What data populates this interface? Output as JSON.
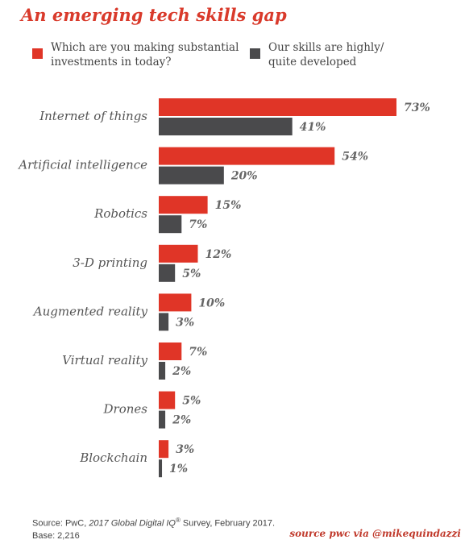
{
  "title": "An emerging tech skills gap",
  "legend": {
    "series1": "Which are you making substantial investments in today?",
    "series1_line1": "Which are you making substantial",
    "series1_line2": "investments in today?",
    "series2": "Our skills are highly/ quite developed",
    "series2_line1": "Our skills are highly/",
    "series2_line2": "quite developed"
  },
  "colors": {
    "series1": "#e03527",
    "series2": "#4a4a4c",
    "title": "#d93a2b"
  },
  "source": {
    "prefix": "Source: PwC, ",
    "italic": "2017 Global Digital IQ",
    "reg": "®",
    "suffix": " Survey, February 2017.",
    "base": "Base: 2,216"
  },
  "credit": "source pwc via @mikequindazzi",
  "chart_data": {
    "type": "bar",
    "orientation": "horizontal",
    "title": "An emerging tech skills gap",
    "unit": "%",
    "categories": [
      "Internet of things",
      "Artificial intelligence",
      "Robotics",
      "3-D printing",
      "Augmented reality",
      "Virtual reality",
      "Drones",
      "Blockchain"
    ],
    "series": [
      {
        "name": "Which are you making substantial investments in today?",
        "values": [
          73,
          54,
          15,
          12,
          10,
          7,
          5,
          3
        ],
        "color": "#e03527"
      },
      {
        "name": "Our skills are highly/ quite developed",
        "values": [
          41,
          20,
          7,
          5,
          3,
          2,
          2,
          1
        ],
        "color": "#4a4a4c"
      }
    ],
    "xlim": [
      0,
      73
    ],
    "legend_position": "top",
    "grid": false
  }
}
